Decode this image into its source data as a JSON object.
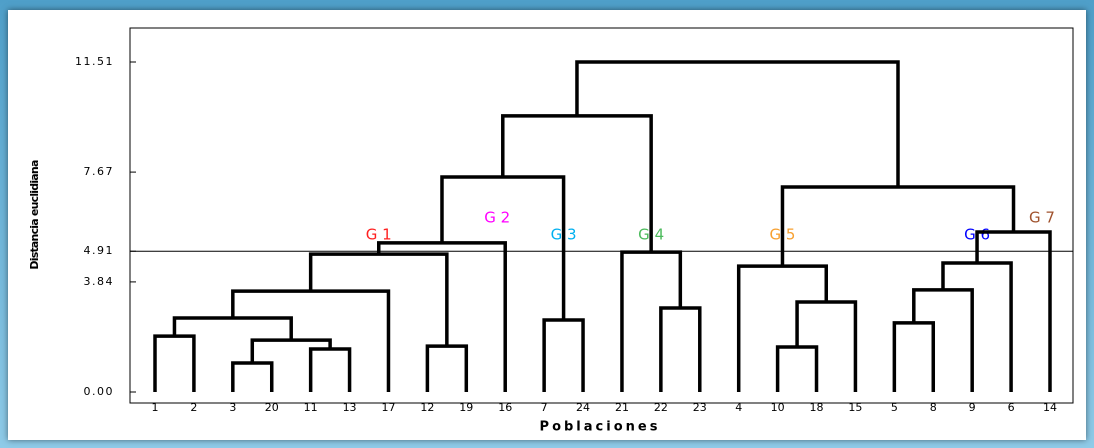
{
  "chart_data": {
    "type": "dendrogram",
    "y_label": "Distancia euclidiana",
    "x_label": "Poblaciones",
    "ylim": [
      0,
      11.51
    ],
    "yticks": [
      {
        "value": 0,
        "label": "0.00"
      },
      3.84,
      4.91,
      7.67,
      11.51
    ],
    "cut_line": 4.91,
    "line_color": "#000000",
    "tree": {
      "height": 11.51,
      "children": [
        {
          "height": 9.63,
          "children": [
            {
              "height": 7.5,
              "children": [
                {
                  "height": 5.2,
                  "children": [
                    {
                      "height": 4.81,
                      "group": {
                        "name": "G 1",
                        "color": "#ff2020"
                      },
                      "children": [
                        {
                          "height": 3.52,
                          "children": [
                            {
                              "height": 2.58,
                              "children": [
                                {
                                  "height": 1.95,
                                  "children": [
                                    {
                                      "label": "1"
                                    },
                                    {
                                      "label": "2"
                                    }
                                  ]
                                },
                                {
                                  "height": 1.81,
                                  "children": [
                                    {
                                      "height": 1.01,
                                      "children": [
                                        {
                                          "label": "3"
                                        },
                                        {
                                          "label": "20"
                                        }
                                      ]
                                    },
                                    {
                                      "height": 1.5,
                                      "children": [
                                        {
                                          "label": "11"
                                        },
                                        {
                                          "label": "13"
                                        }
                                      ]
                                    }
                                  ]
                                }
                              ]
                            },
                            {
                              "label": "17"
                            }
                          ]
                        },
                        {
                          "height": 1.6,
                          "children": [
                            {
                              "label": "12"
                            },
                            {
                              "label": "19"
                            }
                          ]
                        }
                      ]
                    },
                    {
                      "label": "16",
                      "group": {
                        "name": "G 2",
                        "color": "#ff00ff"
                      }
                    }
                  ]
                },
                {
                  "height": 2.51,
                  "group": {
                    "name": "G 3",
                    "color": "#00b0f0"
                  },
                  "children": [
                    {
                      "label": "7"
                    },
                    {
                      "label": "24"
                    }
                  ]
                }
              ]
            },
            {
              "height": 4.88,
              "group": {
                "name": "G 4",
                "color": "#4cbb5c"
              },
              "children": [
                {
                  "label": "21"
                },
                {
                  "height": 2.93,
                  "children": [
                    {
                      "label": "22"
                    },
                    {
                      "label": "23"
                    }
                  ]
                }
              ]
            }
          ]
        },
        {
          "height": 7.15,
          "children": [
            {
              "height": 4.39,
              "group": {
                "name": "G 5",
                "color": "#f7a030"
              },
              "children": [
                {
                  "label": "4"
                },
                {
                  "height": 3.14,
                  "children": [
                    {
                      "height": 1.57,
                      "children": [
                        {
                          "label": "10"
                        },
                        {
                          "label": "18"
                        }
                      ]
                    },
                    {
                      "label": "15"
                    }
                  ]
                }
              ]
            },
            {
              "height": 5.58,
              "children": [
                {
                  "height": 4.5,
                  "group": {
                    "name": "G 6",
                    "color": "#0000ff"
                  },
                  "children": [
                    {
                      "height": 3.56,
                      "children": [
                        {
                          "height": 2.41,
                          "children": [
                            {
                              "label": "5"
                            },
                            {
                              "label": "8"
                            }
                          ]
                        },
                        {
                          "label": "9"
                        }
                      ]
                    },
                    {
                      "label": "6"
                    }
                  ]
                },
                {
                  "label": "14",
                  "group": {
                    "name": "G 7",
                    "color": "#a0522d"
                  }
                }
              ]
            }
          ]
        }
      ]
    }
  }
}
